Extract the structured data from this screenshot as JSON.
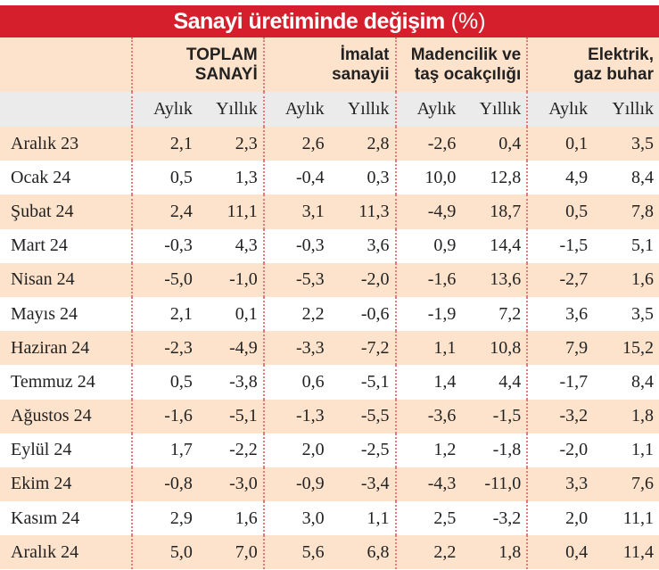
{
  "title": "Sanayi üretiminde değişim",
  "title_unit": "(%)",
  "groups": [
    [
      "TOPLAM",
      "SANAYİ"
    ],
    [
      "İmalat",
      "sanayii"
    ],
    [
      "Madencilik ve",
      "taş ocakçılığı"
    ],
    [
      "Elektrik,",
      "gaz buhar"
    ]
  ],
  "subheaders": [
    "Aylık",
    "Yıllık",
    "Aylık",
    "Yıllık",
    "Aylık",
    "Yıllık",
    "Aylık",
    "Yıllık"
  ],
  "rows": [
    {
      "label": "Aralık 23",
      "values": [
        "2,1",
        "2,3",
        "2,6",
        "2,8",
        "-2,6",
        "0,4",
        "0,1",
        "3,5"
      ]
    },
    {
      "label": "Ocak 24",
      "values": [
        "0,5",
        "1,3",
        "-0,4",
        "0,3",
        "10,0",
        "12,8",
        "4,9",
        "8,4"
      ]
    },
    {
      "label": "Şubat 24",
      "values": [
        "2,4",
        "11,1",
        "3,1",
        "11,3",
        "-4,9",
        "18,7",
        "0,5",
        "7,8"
      ]
    },
    {
      "label": "Mart 24",
      "values": [
        "-0,3",
        "4,3",
        "-0,3",
        "3,6",
        "0,9",
        "14,4",
        "-1,5",
        "5,1"
      ]
    },
    {
      "label": "Nisan 24",
      "values": [
        "-5,0",
        "-1,0",
        "-5,3",
        "-2,0",
        "-1,6",
        "13,6",
        "-2,7",
        "1,6"
      ]
    },
    {
      "label": "Mayıs 24",
      "values": [
        "2,1",
        "0,1",
        "2,2",
        "-0,6",
        "-1,9",
        "7,2",
        "3,6",
        "3,5"
      ]
    },
    {
      "label": "Haziran 24",
      "values": [
        "-2,3",
        "-4,9",
        "-3,3",
        "-7,2",
        "1,1",
        "10,8",
        "7,9",
        "15,2"
      ]
    },
    {
      "label": "Temmuz 24",
      "values": [
        "0,5",
        "-3,8",
        "0,6",
        "-5,1",
        "1,4",
        "4,4",
        "-1,7",
        "8,4"
      ]
    },
    {
      "label": "Ağustos 24",
      "values": [
        "-1,6",
        "-5,1",
        "-1,3",
        "-5,5",
        "-3,6",
        "-1,5",
        "-3,2",
        "1,8"
      ]
    },
    {
      "label": "Eylül 24",
      "values": [
        "1,7",
        "-2,2",
        "2,0",
        "-2,5",
        "1,2",
        "-1,8",
        "-2,0",
        "1,1"
      ]
    },
    {
      "label": "Ekim 24",
      "values": [
        "-0,8",
        "-3,0",
        "-0,9",
        "-3,4",
        "-4,3",
        "-11,0",
        "3,3",
        "7,6"
      ]
    },
    {
      "label": "Kasım 24",
      "values": [
        "2,9",
        "1,6",
        "3,0",
        "1,1",
        "2,5",
        "-3,2",
        "2,0",
        "11,1"
      ]
    },
    {
      "label": "Aralık 24",
      "values": [
        "5,0",
        "7,0",
        "5,6",
        "6,8",
        "2,2",
        "1,8",
        "0,4",
        "11,4"
      ]
    }
  ]
}
